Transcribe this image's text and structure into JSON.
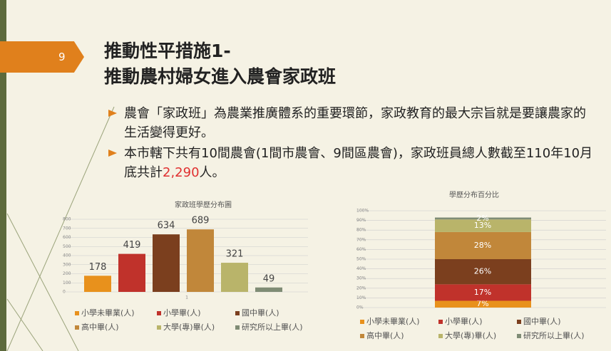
{
  "slide": {
    "page_number": "9",
    "title": [
      "推動性平措施1-",
      "推動農村婦女進入農會家政班"
    ],
    "bullets": [
      [
        "農會「家政班」為農業推廣體系的重要環節，家政教育的最大宗旨就是要讓農家的生活變得更好。"
      ],
      [
        "本市轄下共有10間農會(1間市農會、9間區農會)，家政班員總人數截至110年10月底共計",
        "2,290",
        "人。"
      ]
    ]
  },
  "chart_data": [
    {
      "type": "bar",
      "title": "家政班學歷分布圖",
      "categories": [
        "1"
      ],
      "series": [
        {
          "name": "小學未畢業(人)",
          "color": "#e8911c",
          "values": [
            178
          ]
        },
        {
          "name": "小學畢(人)",
          "color": "#c0322b",
          "values": [
            419
          ]
        },
        {
          "name": "國中畢(人)",
          "color": "#7b3f1e",
          "values": [
            634
          ]
        },
        {
          "name": "高中畢(人)",
          "color": "#c1873a",
          "values": [
            689
          ]
        },
        {
          "name": "大學(專)畢(人)",
          "color": "#b9b46a",
          "values": [
            321
          ]
        },
        {
          "name": "研究所以上畢(人)",
          "color": "#7f8c75",
          "values": [
            49
          ]
        }
      ],
      "ylim": [
        0,
        800
      ],
      "yticks": [
        0,
        100,
        200,
        300,
        400,
        500,
        600,
        700,
        800
      ],
      "legend": "bottom"
    },
    {
      "type": "stacked_bar",
      "title": "學歷分布百分比",
      "series": [
        {
          "name": "小學未畢業(人)",
          "color": "#e8911c",
          "values": [
            7
          ],
          "value_labels": [
            "7%"
          ]
        },
        {
          "name": "小學畢(人)",
          "color": "#c0322b",
          "values": [
            17
          ],
          "value_labels": [
            "17%"
          ]
        },
        {
          "name": "國中畢(人)",
          "color": "#7b3f1e",
          "values": [
            26
          ],
          "value_labels": [
            "26%"
          ]
        },
        {
          "name": "高中畢(人)",
          "color": "#c1873a",
          "values": [
            28
          ],
          "value_labels": [
            "28%"
          ]
        },
        {
          "name": "大學(專)畢(人)",
          "color": "#b9b46a",
          "values": [
            13
          ],
          "value_labels": [
            "13%"
          ]
        },
        {
          "name": "研究所以上畢(人)",
          "color": "#7f8c75",
          "values": [
            2
          ],
          "value_labels": [
            "2%"
          ]
        }
      ],
      "ylim": [
        0,
        100
      ],
      "yticks": [
        {
          "value": 0,
          "label": "0%"
        },
        {
          "value": 10,
          "label": "10%"
        },
        {
          "value": 20,
          "label": "20%"
        },
        {
          "value": 30,
          "label": "30%"
        },
        {
          "value": 40,
          "label": "40%"
        },
        {
          "value": 50,
          "label": "50%"
        },
        {
          "value": 60,
          "label": "60%"
        },
        {
          "value": 70,
          "label": "70%"
        },
        {
          "value": 80,
          "label": "80%"
        },
        {
          "value": 90,
          "label": "90%"
        },
        {
          "value": 100,
          "label": "100%"
        }
      ],
      "legend": "bottom"
    }
  ]
}
